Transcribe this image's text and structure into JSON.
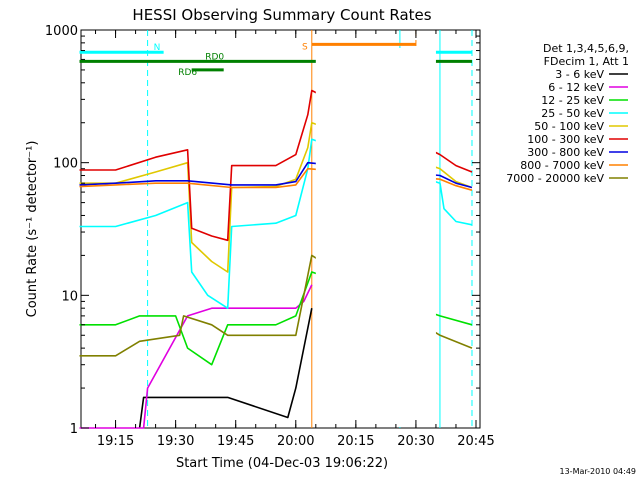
{
  "chart_data": {
    "type": "line",
    "title": "HESSI Observing Summary Count Rates",
    "xlabel": "Start Time (04-Dec-03 19:06:22)",
    "ylabel": "Count Rate (s⁻¹ detector⁻¹)",
    "y_scale": "log",
    "ylim": [
      1,
      1000
    ],
    "y_ticks": [
      "1",
      "10",
      "100",
      "1000"
    ],
    "x_range_minutes": [
      19.1,
      20.77
    ],
    "x_ticks": [
      "19:15",
      "19:30",
      "19:45",
      "20:00",
      "20:15",
      "20:30",
      "20:45"
    ],
    "legend_header": [
      "Det 1,3,4,5,6,9,",
      "FDecim 1, Att 1"
    ],
    "legend_position": "right",
    "footer": "13-Mar-2010 04:49",
    "series": [
      {
        "name": "3 - 6 keV",
        "color": "#000000",
        "points": [
          [
            "19:21",
            1
          ],
          [
            "19:22",
            1.7
          ],
          [
            "19:28",
            1.7
          ],
          [
            "19:35",
            1.7
          ],
          [
            "19:43",
            1.7
          ],
          [
            "19:58",
            1.2
          ],
          [
            "20:00",
            2
          ],
          [
            "20:02",
            4
          ],
          [
            "20:04",
            8
          ]
        ]
      },
      {
        "name": "6 - 12 keV",
        "color": "#e000e0",
        "points": [
          [
            "19:06",
            1
          ],
          [
            "19:22",
            1
          ],
          [
            "19:23",
            2
          ],
          [
            "19:33",
            7
          ],
          [
            "19:39",
            8
          ],
          [
            "19:45",
            8
          ],
          [
            "19:55",
            8
          ],
          [
            "20:00",
            8
          ],
          [
            "20:02",
            9
          ],
          [
            "20:04",
            12
          ]
        ]
      },
      {
        "name": "12 - 25 keV",
        "color": "#00e000",
        "points": [
          [
            "19:06",
            6
          ],
          [
            "19:15",
            6
          ],
          [
            "19:21",
            7
          ],
          [
            "19:30",
            7
          ],
          [
            "19:33",
            4
          ],
          [
            "19:39",
            3
          ],
          [
            "19:43",
            6
          ],
          [
            "19:55",
            6
          ],
          [
            "20:00",
            7
          ],
          [
            "20:04",
            15
          ],
          [
            "20:36",
            7
          ],
          [
            "20:44",
            6
          ]
        ]
      },
      {
        "name": "25 - 50 keV",
        "color": "#00ffff",
        "points": [
          [
            "19:06",
            33
          ],
          [
            "19:15",
            33
          ],
          [
            "19:25",
            40
          ],
          [
            "19:33",
            50
          ],
          [
            "19:34",
            15
          ],
          [
            "19:38",
            10
          ],
          [
            "19:43",
            8
          ],
          [
            "19:44",
            33
          ],
          [
            "19:55",
            35
          ],
          [
            "20:00",
            40
          ],
          [
            "20:03",
            90
          ],
          [
            "20:04",
            150
          ],
          [
            "20:36",
            70
          ],
          [
            "20:37",
            45
          ],
          [
            "20:40",
            36
          ],
          [
            "20:44",
            34
          ]
        ]
      },
      {
        "name": "50 - 100 keV",
        "color": "#e0c800",
        "points": [
          [
            "19:06",
            70
          ],
          [
            "19:15",
            70
          ],
          [
            "19:25",
            85
          ],
          [
            "19:33",
            100
          ],
          [
            "19:34",
            25
          ],
          [
            "19:39",
            18
          ],
          [
            "19:43",
            15
          ],
          [
            "19:44",
            65
          ],
          [
            "19:55",
            66
          ],
          [
            "20:00",
            75
          ],
          [
            "20:03",
            130
          ],
          [
            "20:04",
            200
          ],
          [
            "20:36",
            90
          ],
          [
            "20:40",
            72
          ],
          [
            "20:44",
            65
          ]
        ]
      },
      {
        "name": "100 - 300 keV",
        "color": "#e00000",
        "points": [
          [
            "19:06",
            88
          ],
          [
            "19:15",
            88
          ],
          [
            "19:25",
            110
          ],
          [
            "19:33",
            125
          ],
          [
            "19:34",
            32
          ],
          [
            "19:39",
            28
          ],
          [
            "19:43",
            26
          ],
          [
            "19:44",
            95
          ],
          [
            "19:55",
            95
          ],
          [
            "20:00",
            115
          ],
          [
            "20:03",
            230
          ],
          [
            "20:04",
            350
          ],
          [
            "20:36",
            115
          ],
          [
            "20:40",
            95
          ],
          [
            "20:44",
            85
          ]
        ]
      },
      {
        "name": "300 - 800 keV",
        "color": "#0000e0",
        "points": [
          [
            "19:06",
            68
          ],
          [
            "19:15",
            70
          ],
          [
            "19:25",
            73
          ],
          [
            "19:33",
            73
          ],
          [
            "19:44",
            68
          ],
          [
            "19:55",
            68
          ],
          [
            "20:00",
            72
          ],
          [
            "20:03",
            100
          ],
          [
            "20:36",
            80
          ],
          [
            "20:40",
            70
          ],
          [
            "20:44",
            65
          ]
        ]
      },
      {
        "name": "800 - 7000 keV",
        "color": "#ff8000",
        "points": [
          [
            "19:06",
            66
          ],
          [
            "19:15",
            68
          ],
          [
            "19:25",
            70
          ],
          [
            "19:33",
            70
          ],
          [
            "19:44",
            65
          ],
          [
            "19:55",
            65
          ],
          [
            "20:00",
            68
          ],
          [
            "20:03",
            90
          ],
          [
            "20:36",
            75
          ],
          [
            "20:40",
            67
          ],
          [
            "20:44",
            62
          ]
        ]
      },
      {
        "name": "7000 - 20000 keV",
        "color": "#808000",
        "points": [
          [
            "19:06",
            3.5
          ],
          [
            "19:15",
            3.5
          ],
          [
            "19:21",
            4.5
          ],
          [
            "19:31",
            5
          ],
          [
            "19:32",
            7
          ],
          [
            "19:39",
            6
          ],
          [
            "19:43",
            5
          ],
          [
            "19:55",
            5
          ],
          [
            "20:00",
            5
          ],
          [
            "20:04",
            20
          ],
          [
            "20:36",
            5
          ],
          [
            "20:44",
            4
          ]
        ]
      }
    ],
    "annotations": [
      {
        "label": "N",
        "color": "#00ffff",
        "level": 680,
        "start": "19:06",
        "end": "20:44",
        "gap": [
          "19:27",
          "20:27"
        ]
      },
      {
        "label": "S",
        "color": "#ff8000",
        "level": 780,
        "start": "20:04",
        "end": "20:30"
      },
      {
        "label": "RD6",
        "color": "#008000",
        "level": 500,
        "start": "19:34",
        "end": "19:42"
      },
      {
        "label": "RD0",
        "color": "#008000",
        "level": 580,
        "start": "19:06",
        "end": "20:44"
      }
    ],
    "vertical_markers": [
      {
        "time": "19:23",
        "color": "#00ffff",
        "style": "dashed"
      },
      {
        "time": "20:04",
        "color": "#ff8000",
        "style": "solid"
      },
      {
        "time": "20:26",
        "color": "#00ffff",
        "style": "solid"
      },
      {
        "time": "20:30",
        "color": "#ff8000",
        "style": "dashed"
      },
      {
        "time": "20:36",
        "color": "#00ffff",
        "style": "solid"
      },
      {
        "time": "20:44",
        "color": "#00ffff",
        "style": "dashed"
      }
    ],
    "data_gaps": [
      [
        "20:05",
        "20:35"
      ]
    ],
    "grid": false
  }
}
